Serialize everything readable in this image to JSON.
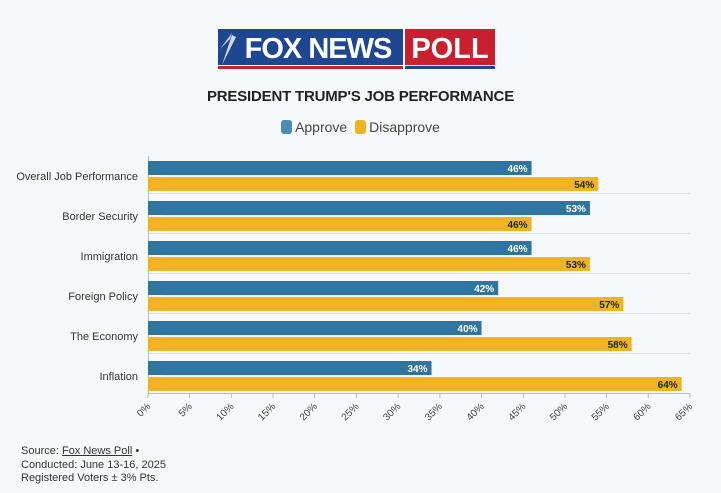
{
  "logo": {
    "left_text": "FOX NEWS",
    "right_text": "POLL"
  },
  "chart_data": {
    "type": "bar",
    "orientation": "horizontal",
    "title": "PRESIDENT TRUMP'S JOB PERFORMANCE",
    "categories": [
      "Overall Job Performance",
      "Border Security",
      "Immigration",
      "Foreign Policy",
      "The Economy",
      "Inflation"
    ],
    "series": [
      {
        "name": "Approve",
        "color": "#2e76a0",
        "values": [
          46,
          53,
          46,
          42,
          40,
          34
        ]
      },
      {
        "name": "Disapprove",
        "color": "#f0b323",
        "values": [
          54,
          46,
          53,
          57,
          58,
          64
        ]
      }
    ],
    "xlim": [
      0,
      65
    ],
    "xticks": [
      "0%",
      "5%",
      "10%",
      "15%",
      "20%",
      "25%",
      "30%",
      "35%",
      "40%",
      "45%",
      "50%",
      "55%",
      "60%",
      "65%"
    ],
    "legend_position": "top-center",
    "grid": true
  },
  "source": {
    "prefix": "Source: ",
    "link": "Fox News Poll",
    "suffix": " •",
    "conducted": "Conducted: June 13-16, 2025",
    "sample": "Registered Voters ± 3% Pts."
  }
}
